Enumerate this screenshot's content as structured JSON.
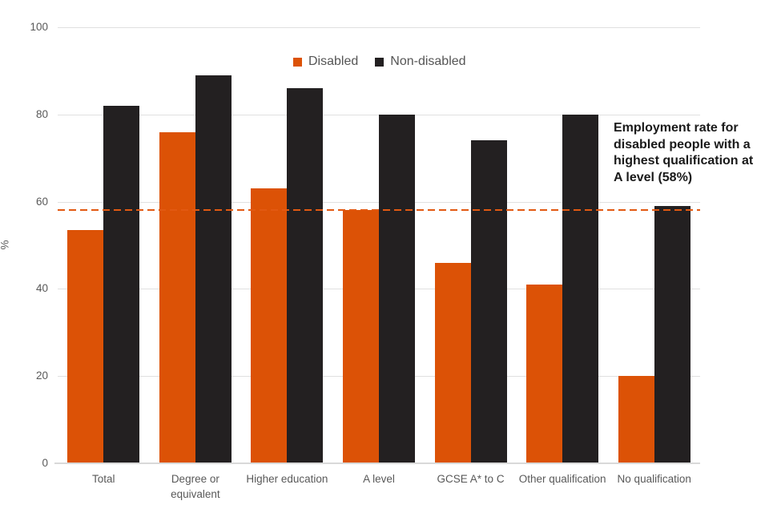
{
  "chart_data": {
    "type": "bar",
    "title": "",
    "categories": [
      "Total",
      "Degree or equivalent",
      "Higher education",
      "A level",
      "GCSE A* to C",
      "Other qualification",
      "No qualification"
    ],
    "series": [
      {
        "name": "Disabled",
        "color": "#dc5206",
        "values": [
          53.5,
          76,
          63,
          58,
          46,
          41,
          20
        ]
      },
      {
        "name": "Non-disabled",
        "color": "#232021",
        "values": [
          82,
          89,
          86,
          80,
          74,
          80,
          59
        ]
      }
    ],
    "xlabel": "",
    "ylabel": "%",
    "ylim": [
      0,
      100
    ],
    "yticks": [
      0,
      20,
      40,
      60,
      80,
      100
    ],
    "grid": true,
    "legend_position": "top-center",
    "reference_line": {
      "value": 58,
      "style": "dashed",
      "color": "#e25912",
      "label": "Employment rate for disabled people with a highest qualification at A level (58%)"
    }
  },
  "legend": {
    "items": [
      {
        "label": "Disabled",
        "color": "#dc5206"
      },
      {
        "label": "Non-disabled",
        "color": "#232021"
      }
    ]
  },
  "annotation": {
    "lines": [
      "Employment rate for",
      "disabled people with a",
      "highest qualification at",
      "A level (58%)"
    ]
  },
  "axes": {
    "ylabel": "%",
    "ytick_labels": [
      "0",
      "20",
      "40",
      "60",
      "80",
      "100"
    ]
  }
}
